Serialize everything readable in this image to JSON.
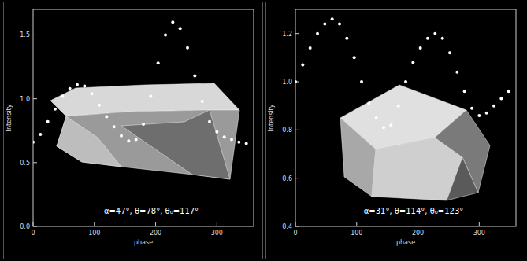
{
  "chart_data": [
    {
      "type": "scatter",
      "x_label": "phase",
      "y_label": "Intensity",
      "annotations": [
        "α=47°, θ=78°, θ₀=117°"
      ],
      "x": [
        0,
        12,
        24,
        36,
        48,
        60,
        72,
        84,
        96,
        108,
        120,
        132,
        144,
        156,
        168,
        180,
        192,
        204,
        216,
        228,
        240,
        252,
        264,
        276,
        288,
        300,
        312,
        324,
        336,
        348
      ],
      "values": [
        0.66,
        0.72,
        0.82,
        0.92,
        1.02,
        1.08,
        1.11,
        1.1,
        1.04,
        0.95,
        0.86,
        0.78,
        0.71,
        0.67,
        0.68,
        0.8,
        1.02,
        1.28,
        1.5,
        1.6,
        1.55,
        1.4,
        1.18,
        0.98,
        0.82,
        0.74,
        0.7,
        0.68,
        0.66,
        0.65
      ],
      "color": "#ffffff",
      "marker": "dot",
      "xlim": [
        0,
        360
      ],
      "xticks": [
        0,
        100,
        200,
        300
      ],
      "ylim": [
        0,
        1.7
      ],
      "yticks": [
        {
          "value": 0,
          "label": "0.0"
        },
        {
          "value": 0.5,
          "label": "0.5"
        },
        {
          "value": 1,
          "label": "1.0"
        },
        {
          "value": 1.5,
          "label": "1.5"
        }
      ]
    },
    {
      "type": "scatter",
      "x_label": "phase",
      "y_label": "Intensity",
      "annotations": [
        "α=31°, θ=114°, θ₀=123°"
      ],
      "x": [
        0,
        12,
        24,
        36,
        48,
        60,
        72,
        84,
        96,
        108,
        120,
        132,
        144,
        156,
        168,
        180,
        192,
        204,
        216,
        228,
        240,
        252,
        264,
        276,
        288,
        300,
        312,
        324,
        336,
        348
      ],
      "values": [
        1.0,
        1.07,
        1.14,
        1.2,
        1.24,
        1.26,
        1.24,
        1.18,
        1.1,
        1.0,
        0.91,
        0.85,
        0.81,
        0.82,
        0.9,
        1.0,
        1.08,
        1.14,
        1.18,
        1.2,
        1.18,
        1.12,
        1.04,
        0.96,
        0.89,
        0.86,
        0.87,
        0.9,
        0.93,
        0.96
      ],
      "color": "#ffffff",
      "marker": "dot",
      "xlim": [
        0,
        360
      ],
      "xticks": [
        0,
        100,
        200,
        300
      ],
      "ylim": [
        0.4,
        1.3
      ],
      "yticks": [
        0.4,
        0.6,
        0.8,
        {
          "value": 1,
          "label": "1.0"
        },
        1.2
      ]
    }
  ]
}
